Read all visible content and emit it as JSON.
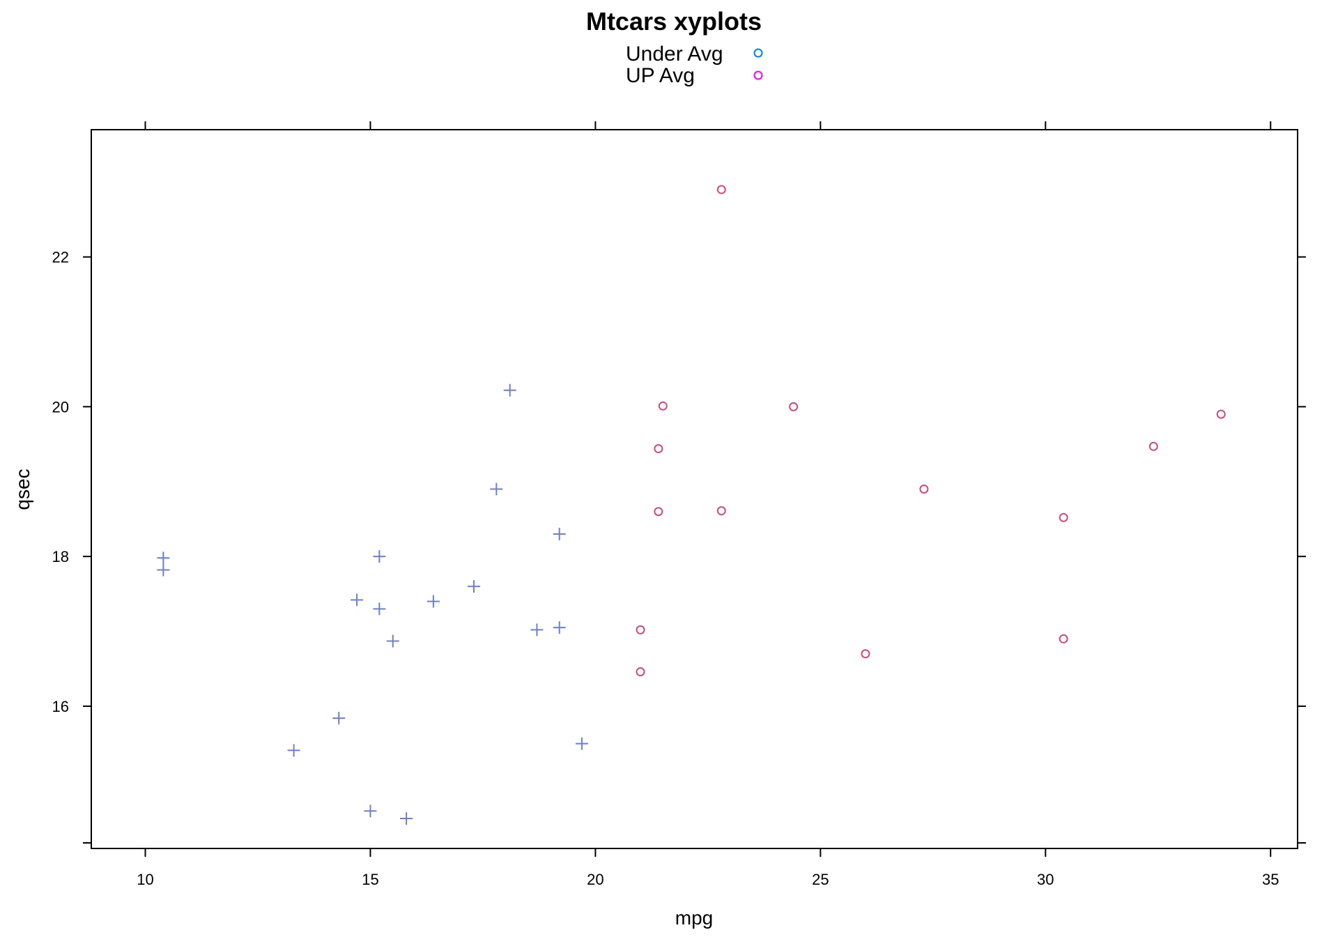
{
  "chart_data": {
    "type": "scatter",
    "title": "Mtcars xyplots",
    "xlabel": "mpg",
    "ylabel": "qsec",
    "xlim": [
      8.8,
      35.6
    ],
    "ylim": [
      14.1,
      23.7
    ],
    "xticks": [
      10,
      15,
      20,
      25,
      30,
      35
    ],
    "yticks": [
      16,
      18,
      20,
      22
    ],
    "grid": false,
    "legend_position": "top",
    "legend": [
      {
        "label": "Under Avg",
        "symbol": "circle",
        "color": "#0080ff"
      },
      {
        "label": "UP Avg",
        "symbol": "circle",
        "color": "#ff00ff"
      }
    ],
    "series": [
      {
        "symbol": "plus",
        "color": "#6b7fd4",
        "points": [
          {
            "x": 10.4,
            "y": 17.98
          },
          {
            "x": 10.4,
            "y": 17.82
          },
          {
            "x": 13.3,
            "y": 15.41
          },
          {
            "x": 14.3,
            "y": 15.84
          },
          {
            "x": 14.7,
            "y": 17.42
          },
          {
            "x": 15.0,
            "y": 14.6
          },
          {
            "x": 15.2,
            "y": 18.0
          },
          {
            "x": 15.2,
            "y": 17.3
          },
          {
            "x": 15.5,
            "y": 16.87
          },
          {
            "x": 15.8,
            "y": 14.5
          },
          {
            "x": 16.4,
            "y": 17.4
          },
          {
            "x": 17.3,
            "y": 17.6
          },
          {
            "x": 17.8,
            "y": 18.9
          },
          {
            "x": 18.1,
            "y": 20.22
          },
          {
            "x": 18.7,
            "y": 17.02
          },
          {
            "x": 19.2,
            "y": 18.3
          },
          {
            "x": 19.2,
            "y": 17.05
          },
          {
            "x": 19.7,
            "y": 15.5
          }
        ]
      },
      {
        "symbol": "circle",
        "color": "#d9467a",
        "points": [
          {
            "x": 21.0,
            "y": 16.46
          },
          {
            "x": 21.0,
            "y": 17.02
          },
          {
            "x": 21.4,
            "y": 19.44
          },
          {
            "x": 21.4,
            "y": 18.6
          },
          {
            "x": 21.5,
            "y": 20.01
          },
          {
            "x": 22.8,
            "y": 18.61
          },
          {
            "x": 22.8,
            "y": 22.9
          },
          {
            "x": 24.4,
            "y": 20.0
          },
          {
            "x": 26.0,
            "y": 16.7
          },
          {
            "x": 27.3,
            "y": 18.9
          },
          {
            "x": 30.4,
            "y": 16.9
          },
          {
            "x": 30.4,
            "y": 18.52
          },
          {
            "x": 32.4,
            "y": 19.47
          },
          {
            "x": 33.9,
            "y": 19.9
          }
        ]
      }
    ]
  }
}
